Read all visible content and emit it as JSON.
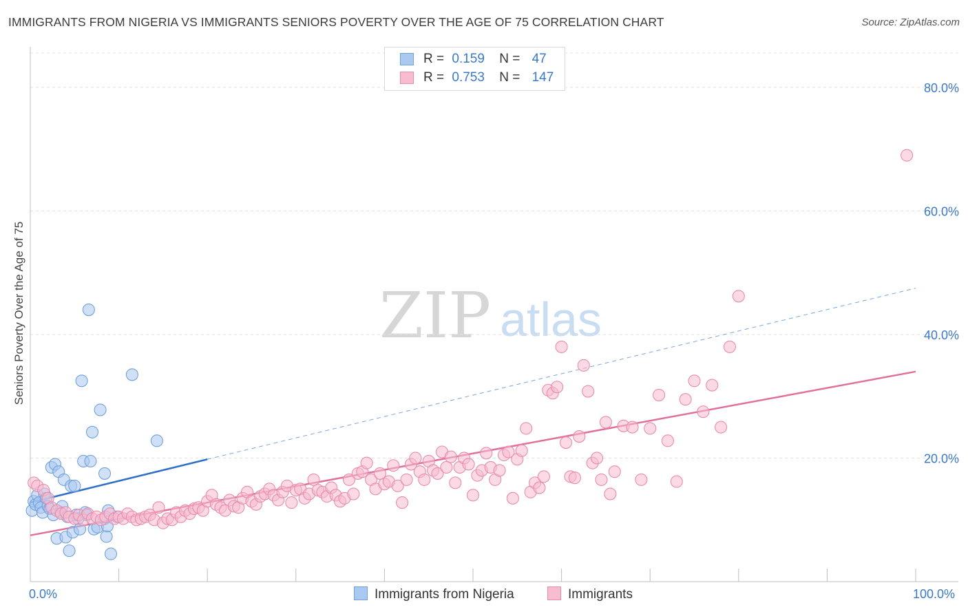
{
  "title": "IMMIGRANTS FROM NIGERIA VS IMMIGRANTS SENIORS POVERTY OVER THE AGE OF 75 CORRELATION CHART",
  "source": "Source: ZipAtlas.com",
  "watermark": {
    "zip": "ZIP",
    "atlas": "atlas"
  },
  "legend": {
    "rows": [
      {
        "r_label": "R =",
        "r_value": "0.159",
        "n_label": "N =",
        "n_value": "47",
        "color": "#a9c9f0",
        "border": "#6fa0dc"
      },
      {
        "r_label": "R =",
        "r_value": "0.753",
        "n_label": "N =",
        "n_value": "147",
        "color": "#f7bcd0",
        "border": "#e98bab"
      }
    ]
  },
  "chart_data": {
    "type": "scatter",
    "ylabel": "Seniors Poverty Over the Age of 75",
    "xlim": [
      0,
      100
    ],
    "ylim": [
      0,
      80
    ],
    "x_tick_labels": {
      "min": "0.0%",
      "max": "100.0%"
    },
    "y_ticks": [
      {
        "value": 20,
        "label": "20.0%"
      },
      {
        "value": 40,
        "label": "40.0%"
      },
      {
        "value": 60,
        "label": "60.0%"
      },
      {
        "value": 80,
        "label": "80.0%"
      }
    ],
    "series": [
      {
        "name": "Immigrants from Nigeria",
        "color": "#a9c9f0",
        "stroke": "#6fa0dc",
        "trend": {
          "x0": 0,
          "y0": 12.8,
          "x1": 20,
          "y1": 19.8,
          "dash_x1": 100,
          "dash_y1": 47.5,
          "color": "#2f6ec9"
        },
        "points": [
          [
            0.2,
            11.5
          ],
          [
            0.4,
            13.0
          ],
          [
            0.6,
            12.5
          ],
          [
            0.8,
            14.0
          ],
          [
            1.0,
            12.8
          ],
          [
            1.2,
            12.0
          ],
          [
            1.4,
            11.2
          ],
          [
            1.6,
            14.2
          ],
          [
            1.8,
            13.5
          ],
          [
            2.0,
            12.2
          ],
          [
            2.2,
            11.8
          ],
          [
            2.4,
            18.5
          ],
          [
            2.6,
            10.8
          ],
          [
            2.8,
            19.0
          ],
          [
            3.0,
            7.0
          ],
          [
            3.2,
            17.8
          ],
          [
            3.4,
            11.2
          ],
          [
            3.6,
            12.2
          ],
          [
            3.8,
            16.5
          ],
          [
            4.0,
            7.2
          ],
          [
            4.2,
            10.5
          ],
          [
            4.4,
            5.0
          ],
          [
            4.6,
            15.5
          ],
          [
            4.8,
            8.0
          ],
          [
            5.0,
            15.5
          ],
          [
            5.2,
            10.8
          ],
          [
            5.4,
            10.2
          ],
          [
            5.6,
            8.5
          ],
          [
            5.8,
            32.5
          ],
          [
            6.0,
            19.5
          ],
          [
            6.2,
            11.2
          ],
          [
            6.4,
            10.8
          ],
          [
            6.6,
            44.0
          ],
          [
            6.8,
            19.5
          ],
          [
            7.0,
            24.2
          ],
          [
            7.2,
            8.5
          ],
          [
            7.6,
            8.8
          ],
          [
            7.9,
            27.8
          ],
          [
            8.4,
            17.5
          ],
          [
            8.4,
            10.2
          ],
          [
            8.6,
            7.3
          ],
          [
            8.7,
            9.0
          ],
          [
            8.8,
            11.5
          ],
          [
            9.1,
            4.5
          ],
          [
            9.8,
            10.5
          ],
          [
            11.5,
            33.5
          ],
          [
            14.3,
            22.8
          ]
        ]
      },
      {
        "name": "Immigrants",
        "color": "#f7bcd0",
        "stroke": "#e98bab",
        "trend": {
          "x0": 0,
          "y0": 7.5,
          "x1": 100,
          "y1": 34.0,
          "color": "#e0709a"
        },
        "points": [
          [
            0.4,
            16.0
          ],
          [
            0.8,
            15.5
          ],
          [
            1.5,
            14.8
          ],
          [
            2.0,
            13.5
          ],
          [
            2.4,
            12.0
          ],
          [
            3.0,
            11.5
          ],
          [
            3.5,
            11.0
          ],
          [
            4.0,
            11.2
          ],
          [
            4.4,
            10.5
          ],
          [
            5.0,
            10.2
          ],
          [
            5.5,
            10.8
          ],
          [
            6.0,
            10.0
          ],
          [
            6.5,
            11.0
          ],
          [
            7.0,
            10.2
          ],
          [
            7.5,
            10.5
          ],
          [
            8.0,
            10.0
          ],
          [
            8.5,
            10.5
          ],
          [
            9.0,
            11.0
          ],
          [
            9.5,
            10.2
          ],
          [
            10.0,
            10.5
          ],
          [
            10.5,
            10.2
          ],
          [
            11.0,
            11.0
          ],
          [
            11.5,
            10.5
          ],
          [
            12.0,
            10.0
          ],
          [
            12.5,
            10.2
          ],
          [
            13.0,
            10.5
          ],
          [
            13.5,
            10.8
          ],
          [
            14.0,
            10.0
          ],
          [
            14.5,
            12.0
          ],
          [
            15.0,
            9.5
          ],
          [
            15.5,
            10.2
          ],
          [
            16.0,
            10.0
          ],
          [
            16.5,
            11.2
          ],
          [
            17.0,
            10.5
          ],
          [
            17.5,
            11.5
          ],
          [
            18.0,
            11.0
          ],
          [
            18.5,
            11.8
          ],
          [
            19.0,
            12.0
          ],
          [
            19.5,
            11.5
          ],
          [
            20.0,
            13.0
          ],
          [
            20.5,
            14.0
          ],
          [
            21.0,
            12.5
          ],
          [
            21.5,
            12.0
          ],
          [
            22.0,
            11.5
          ],
          [
            22.5,
            13.2
          ],
          [
            23.0,
            12.2
          ],
          [
            23.5,
            12.0
          ],
          [
            24.0,
            13.5
          ],
          [
            24.5,
            14.5
          ],
          [
            25.0,
            13.0
          ],
          [
            25.5,
            12.5
          ],
          [
            26.0,
            13.8
          ],
          [
            26.5,
            14.2
          ],
          [
            27.0,
            15.0
          ],
          [
            27.5,
            14.0
          ],
          [
            28.0,
            13.2
          ],
          [
            28.5,
            14.5
          ],
          [
            29.0,
            15.5
          ],
          [
            29.5,
            12.8
          ],
          [
            30.0,
            14.8
          ],
          [
            30.5,
            15.0
          ],
          [
            31.0,
            13.5
          ],
          [
            31.5,
            14.2
          ],
          [
            32.0,
            16.5
          ],
          [
            32.5,
            14.8
          ],
          [
            33.0,
            14.5
          ],
          [
            33.5,
            13.8
          ],
          [
            34.0,
            15.2
          ],
          [
            34.5,
            14.0
          ],
          [
            35.0,
            13.0
          ],
          [
            35.5,
            13.5
          ],
          [
            36.0,
            16.5
          ],
          [
            36.5,
            14.2
          ],
          [
            37.0,
            17.5
          ],
          [
            37.5,
            17.8
          ],
          [
            38.0,
            19.2
          ],
          [
            38.5,
            16.5
          ],
          [
            39.0,
            15.0
          ],
          [
            39.5,
            17.5
          ],
          [
            40.0,
            15.8
          ],
          [
            40.5,
            16.2
          ],
          [
            41.0,
            18.8
          ],
          [
            41.5,
            15.5
          ],
          [
            42.0,
            12.8
          ],
          [
            42.5,
            16.5
          ],
          [
            43.0,
            19.0
          ],
          [
            43.5,
            20.0
          ],
          [
            44.0,
            17.8
          ],
          [
            44.5,
            16.5
          ],
          [
            45.0,
            19.5
          ],
          [
            45.5,
            18.0
          ],
          [
            46.0,
            17.5
          ],
          [
            46.5,
            21.0
          ],
          [
            47.0,
            18.5
          ],
          [
            47.5,
            20.2
          ],
          [
            48.0,
            16.0
          ],
          [
            48.5,
            18.5
          ],
          [
            49.0,
            20.0
          ],
          [
            49.5,
            19.0
          ],
          [
            50.0,
            14.0
          ],
          [
            50.5,
            17.2
          ],
          [
            51.0,
            18.0
          ],
          [
            51.5,
            20.8
          ],
          [
            52.0,
            18.5
          ],
          [
            52.5,
            16.5
          ],
          [
            53.0,
            18.0
          ],
          [
            53.5,
            20.5
          ],
          [
            54.0,
            21.0
          ],
          [
            54.5,
            13.5
          ],
          [
            55.0,
            19.8
          ],
          [
            55.5,
            21.2
          ],
          [
            56.0,
            24.8
          ],
          [
            56.5,
            14.5
          ],
          [
            57.0,
            16.0
          ],
          [
            57.5,
            15.2
          ],
          [
            58.0,
            17.0
          ],
          [
            58.5,
            31.0
          ],
          [
            59.0,
            30.5
          ],
          [
            59.5,
            31.5
          ],
          [
            60.0,
            38.0
          ],
          [
            60.5,
            22.5
          ],
          [
            61.0,
            17.0
          ],
          [
            61.5,
            16.8
          ],
          [
            62.0,
            23.5
          ],
          [
            62.5,
            35.0
          ],
          [
            63.0,
            30.8
          ],
          [
            63.5,
            19.2
          ],
          [
            64.0,
            20.0
          ],
          [
            64.5,
            16.5
          ],
          [
            65.0,
            25.8
          ],
          [
            65.5,
            14.2
          ],
          [
            66.0,
            17.8
          ],
          [
            67.0,
            25.2
          ],
          [
            68.0,
            25.0
          ],
          [
            69.0,
            16.5
          ],
          [
            70.0,
            24.8
          ],
          [
            71.0,
            30.2
          ],
          [
            72.0,
            22.8
          ],
          [
            73.0,
            16.2
          ],
          [
            74.0,
            29.5
          ],
          [
            75.0,
            32.5
          ],
          [
            76.0,
            27.5
          ],
          [
            77.0,
            31.8
          ],
          [
            78.0,
            25.0
          ],
          [
            79.0,
            38.0
          ],
          [
            80.0,
            46.2
          ],
          [
            99.0,
            69.0
          ]
        ]
      }
    ],
    "legend_placement": "top-center",
    "bottom_legend": true
  }
}
